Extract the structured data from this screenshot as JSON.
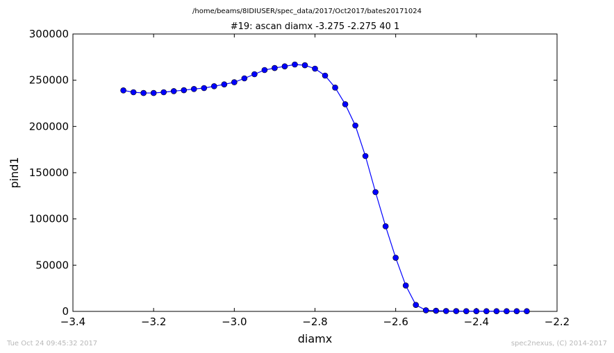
{
  "figure": {
    "suptitle": "/home/beams/8IDIUSER/spec_data/2017/Oct2017/bates20171024",
    "timestamp": "Tue Oct 24 09:45:32 2017",
    "credit": "spec2nexus, (C) 2014-2017"
  },
  "chart_data": {
    "type": "line",
    "title": "#19: ascan  diamx -3.275 -2.275  40 1",
    "xlabel": "diamx",
    "ylabel": "pind1",
    "xlim": [
      -3.4,
      -2.2
    ],
    "ylim": [
      0,
      300000
    ],
    "xticks": [
      -3.4,
      -3.2,
      -3.0,
      -2.8,
      -2.6,
      -2.4,
      -2.2
    ],
    "xtick_labels": [
      "−3.4",
      "−3.2",
      "−3.0",
      "−2.8",
      "−2.6",
      "−2.4",
      "−2.2"
    ],
    "yticks": [
      0,
      50000,
      100000,
      150000,
      200000,
      250000,
      300000
    ],
    "ytick_labels": [
      "0",
      "50000",
      "100000",
      "150000",
      "200000",
      "250000",
      "300000"
    ],
    "grid": false,
    "line_color": "#0000ff",
    "marker": "circle",
    "x": [
      -3.275,
      -3.25,
      -3.225,
      -3.2,
      -3.175,
      -3.15,
      -3.125,
      -3.1,
      -3.075,
      -3.05,
      -3.025,
      -3.0,
      -2.975,
      -2.95,
      -2.925,
      -2.9,
      -2.875,
      -2.85,
      -2.825,
      -2.8,
      -2.775,
      -2.75,
      -2.725,
      -2.7,
      -2.675,
      -2.65,
      -2.625,
      -2.6,
      -2.575,
      -2.55,
      -2.525,
      -2.5,
      -2.475,
      -2.45,
      -2.425,
      -2.4,
      -2.375,
      -2.35,
      -2.325,
      -2.3,
      -2.275
    ],
    "y": [
      239000,
      237000,
      236200,
      236200,
      237000,
      238200,
      239200,
      240500,
      241500,
      243500,
      245500,
      247800,
      252000,
      256500,
      261000,
      263200,
      265000,
      267000,
      266200,
      262500,
      255000,
      242000,
      224000,
      201000,
      168000,
      129000,
      92000,
      58000,
      28000,
      7000,
      1200,
      700,
      400,
      300,
      250,
      200,
      200,
      200,
      200,
      200,
      200
    ]
  }
}
